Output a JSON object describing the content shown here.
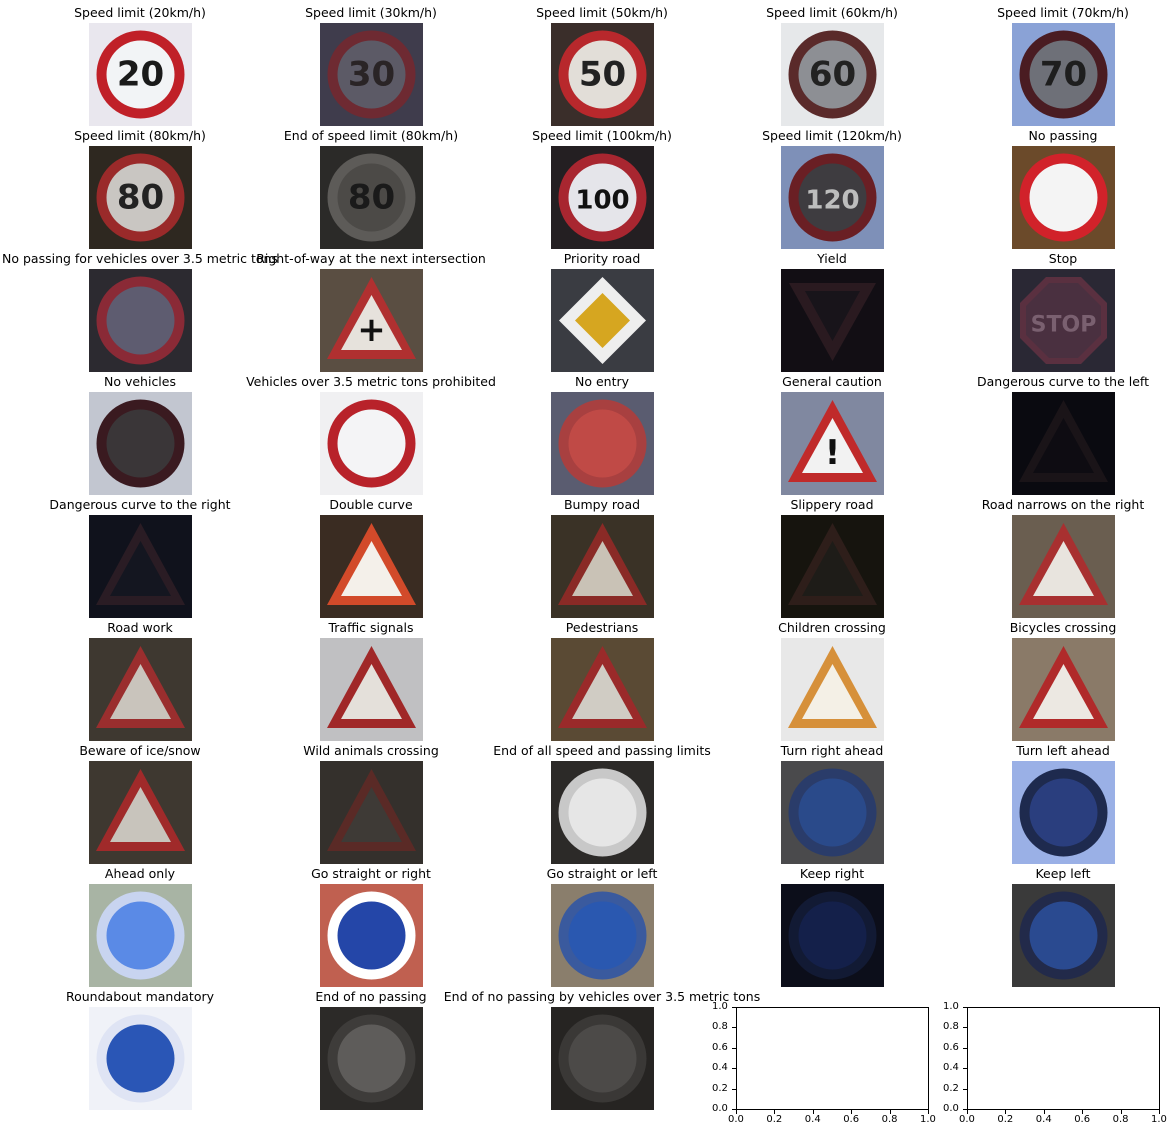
{
  "signs": [
    {
      "title": "Speed limit (20km/h)",
      "bg": "#e9e7ee",
      "kind": "round",
      "ring": "#c02028",
      "fill": "#f2f4f6",
      "text": "20",
      "textColor": "#1a1a1a",
      "icon": "speed-limit-20-sign-icon"
    },
    {
      "title": "Speed limit (30km/h)",
      "bg": "#3f3c4c",
      "kind": "round",
      "ring": "#6e2a32",
      "fill": "#5c5a66",
      "text": "30",
      "textColor": "#2a2426",
      "icon": "speed-limit-30-sign-icon"
    },
    {
      "title": "Speed limit (50km/h)",
      "bg": "#3a2e2a",
      "kind": "round",
      "ring": "#b8282c",
      "fill": "#e2ded8",
      "text": "50",
      "textColor": "#222",
      "icon": "speed-limit-50-sign-icon"
    },
    {
      "title": "Speed limit (60km/h)",
      "bg": "#e6e8ea",
      "kind": "round",
      "ring": "#5a2a2a",
      "fill": "#8d8f94",
      "text": "60",
      "textColor": "#222",
      "icon": "speed-limit-60-sign-icon"
    },
    {
      "title": "Speed limit (70km/h)",
      "bg": "#8aa2d6",
      "kind": "round",
      "ring": "#4a1c22",
      "fill": "#6e7078",
      "text": "70",
      "textColor": "#1e1e1e",
      "icon": "speed-limit-70-sign-icon"
    },
    {
      "title": "Speed limit (80km/h)",
      "bg": "#2e2820",
      "kind": "round",
      "ring": "#9a2a2a",
      "fill": "#c9c6c2",
      "text": "80",
      "textColor": "#222",
      "icon": "speed-limit-80-sign-icon"
    },
    {
      "title": "End of speed limit (80km/h)",
      "bg": "#2b2a28",
      "kind": "round",
      "ring": "#5d5b58",
      "fill": "#4c4a47",
      "text": "80",
      "textColor": "#1a1a1a",
      "icon": "end-speed-limit-80-sign-icon"
    },
    {
      "title": "Speed limit (100km/h)",
      "bg": "#241f22",
      "kind": "round",
      "ring": "#a82630",
      "fill": "#e5e5ea",
      "text": "100",
      "textColor": "#111",
      "icon": "speed-limit-100-sign-icon"
    },
    {
      "title": "Speed limit (120km/h)",
      "bg": "#7e90b8",
      "kind": "round",
      "ring": "#6a1f24",
      "fill": "#3e3c40",
      "text": "120",
      "textColor": "#bdbdbd",
      "icon": "speed-limit-120-sign-icon"
    },
    {
      "title": "No passing",
      "bg": "#6b4a2a",
      "kind": "round",
      "ring": "#d1222a",
      "fill": "#f4f4f4",
      "text": "",
      "textColor": "#222",
      "icon": "no-passing-sign-icon"
    },
    {
      "title": "No passing for vehicles over 3.5 metric tons",
      "bg": "#2c2a30",
      "kind": "round",
      "ring": "#8a2a36",
      "fill": "#5e5c70",
      "text": "",
      "textColor": "#222",
      "icon": "no-passing-trucks-sign-icon"
    },
    {
      "title": "Right-of-way at the next intersection",
      "bg": "#5a4e42",
      "kind": "triangle",
      "ring": "#b03030",
      "fill": "#e6e2dc",
      "text": "+",
      "textColor": "#111",
      "icon": "right-of-way-sign-icon"
    },
    {
      "title": "Priority road",
      "bg": "#3a3c42",
      "kind": "diamond",
      "ring": "#eeeeee",
      "fill": "#d6a620",
      "text": "",
      "textColor": "#111",
      "icon": "priority-road-sign-icon"
    },
    {
      "title": "Yield",
      "bg": "#120e14",
      "kind": "invtriangle",
      "ring": "#2a1a20",
      "fill": "#18141a",
      "text": "",
      "textColor": "#111",
      "icon": "yield-sign-icon"
    },
    {
      "title": "Stop",
      "bg": "#2a2834",
      "kind": "octagon",
      "ring": "#5a3040",
      "fill": "#4a3040",
      "text": "STOP",
      "textColor": "#7a6070",
      "icon": "stop-sign-icon"
    },
    {
      "title": "No vehicles",
      "bg": "#c2c6d0",
      "kind": "round",
      "ring": "#3a1a20",
      "fill": "#3a3638",
      "text": "",
      "textColor": "#222",
      "icon": "no-vehicles-sign-icon"
    },
    {
      "title": "Vehicles over 3.5 metric tons prohibited",
      "bg": "#f0f0f2",
      "kind": "round",
      "ring": "#b8222a",
      "fill": "#f4f4f6",
      "text": "",
      "textColor": "#111",
      "icon": "trucks-prohibited-sign-icon"
    },
    {
      "title": "No entry",
      "bg": "#5a5c70",
      "kind": "round",
      "ring": "#a84040",
      "fill": "#c04a46",
      "text": "",
      "textColor": "#eee",
      "icon": "no-entry-sign-icon"
    },
    {
      "title": "General caution",
      "bg": "#8088a0",
      "kind": "triangle",
      "ring": "#c02a2a",
      "fill": "#f2f2f2",
      "text": "!",
      "textColor": "#111",
      "icon": "general-caution-sign-icon"
    },
    {
      "title": "Dangerous curve to the left",
      "bg": "#0a0a10",
      "kind": "triangle",
      "ring": "#1a1418",
      "fill": "#0e0c12",
      "text": "",
      "textColor": "#222",
      "icon": "curve-left-sign-icon"
    },
    {
      "title": "Dangerous curve to the right",
      "bg": "#10121c",
      "kind": "triangle",
      "ring": "#2a1c24",
      "fill": "#141620",
      "text": "",
      "textColor": "#222",
      "icon": "curve-right-sign-icon"
    },
    {
      "title": "Double curve",
      "bg": "#3a2c22",
      "kind": "triangle",
      "ring": "#d24a2a",
      "fill": "#f4f0ea",
      "text": "",
      "textColor": "#111",
      "icon": "double-curve-sign-icon"
    },
    {
      "title": "Bumpy road",
      "bg": "#3a3226",
      "kind": "triangle",
      "ring": "#8a2a26",
      "fill": "#c9c2b6",
      "text": "",
      "textColor": "#111",
      "icon": "bumpy-road-sign-icon"
    },
    {
      "title": "Slippery road",
      "bg": "#16140e",
      "kind": "triangle",
      "ring": "#2e1e1a",
      "fill": "#1e1c18",
      "text": "",
      "textColor": "#222",
      "icon": "slippery-road-sign-icon"
    },
    {
      "title": "Road narrows on the right",
      "bg": "#6a5e50",
      "kind": "triangle",
      "ring": "#a83030",
      "fill": "#e8e4de",
      "text": "",
      "textColor": "#111",
      "icon": "road-narrows-sign-icon"
    },
    {
      "title": "Road work",
      "bg": "#3e3830",
      "kind": "triangle",
      "ring": "#9a2e2e",
      "fill": "#c9c4bc",
      "text": "",
      "textColor": "#111",
      "icon": "road-work-sign-icon"
    },
    {
      "title": "Traffic signals",
      "bg": "#c0c0c2",
      "kind": "triangle",
      "ring": "#a02828",
      "fill": "#e4e0da",
      "text": "",
      "textColor": "#111",
      "icon": "traffic-signals-sign-icon"
    },
    {
      "title": "Pedestrians",
      "bg": "#5a4a34",
      "kind": "triangle",
      "ring": "#9a2a2a",
      "fill": "#d0ccc4",
      "text": "",
      "textColor": "#111",
      "icon": "pedestrians-sign-icon"
    },
    {
      "title": "Children crossing",
      "bg": "#e8e8e8",
      "kind": "triangle",
      "ring": "#d6903a",
      "fill": "#f4f0e6",
      "text": "",
      "textColor": "#111",
      "icon": "children-crossing-sign-icon"
    },
    {
      "title": "Bicycles crossing",
      "bg": "#8a7a68",
      "kind": "triangle",
      "ring": "#b02a2a",
      "fill": "#ece8e2",
      "text": "",
      "textColor": "#111",
      "icon": "bicycles-crossing-sign-icon"
    },
    {
      "title": "Beware of ice/snow",
      "bg": "#3e3830",
      "kind": "triangle",
      "ring": "#a02a2a",
      "fill": "#c8c4bc",
      "text": "",
      "textColor": "#111",
      "icon": "ice-snow-sign-icon"
    },
    {
      "title": "Wild animals crossing",
      "bg": "#34302c",
      "kind": "triangle",
      "ring": "#5a2a26",
      "fill": "#3e3a36",
      "text": "",
      "textColor": "#222",
      "icon": "wild-animals-sign-icon"
    },
    {
      "title": "End of all speed and passing limits",
      "bg": "#2c2a28",
      "kind": "round",
      "ring": "#c8c8c8",
      "fill": "#e6e6e6",
      "text": "",
      "textColor": "#222",
      "icon": "end-all-limits-sign-icon"
    },
    {
      "title": "Turn right ahead",
      "bg": "#4a4a4c",
      "kind": "round",
      "ring": "#2a3c6a",
      "fill": "#2a4a8a",
      "text": "",
      "textColor": "#ddd",
      "icon": "turn-right-sign-icon"
    },
    {
      "title": "Turn left ahead",
      "bg": "#9ab0e6",
      "kind": "round",
      "ring": "#1e2a4e",
      "fill": "#2a3e7e",
      "text": "",
      "textColor": "#ddd",
      "icon": "turn-left-sign-icon"
    },
    {
      "title": "Ahead only",
      "bg": "#a8b4a4",
      "kind": "round",
      "ring": "#c8d4f0",
      "fill": "#5a8ae6",
      "text": "",
      "textColor": "#fff",
      "icon": "ahead-only-sign-icon"
    },
    {
      "title": "Go straight or right",
      "bg": "#c06050",
      "kind": "round",
      "ring": "#ffffff",
      "fill": "#2446a8",
      "text": "",
      "textColor": "#fff",
      "icon": "straight-or-right-sign-icon"
    },
    {
      "title": "Go straight or left",
      "bg": "#8a7e6c",
      "kind": "round",
      "ring": "#3a5a9e",
      "fill": "#2a58b0",
      "text": "",
      "textColor": "#fff",
      "icon": "straight-or-left-sign-icon"
    },
    {
      "title": "Keep right",
      "bg": "#0c0e1a",
      "kind": "round",
      "ring": "#121a34",
      "fill": "#14204a",
      "text": "",
      "textColor": "#2a3a6a",
      "icon": "keep-right-sign-icon"
    },
    {
      "title": "Keep left",
      "bg": "#3a3a3a",
      "kind": "round",
      "ring": "#222a4a",
      "fill": "#2a4a90",
      "text": "",
      "textColor": "#fff",
      "icon": "keep-left-sign-icon"
    },
    {
      "title": "Roundabout mandatory",
      "bg": "#f0f2f8",
      "kind": "round",
      "ring": "#dfe4f4",
      "fill": "#2a56b6",
      "text": "",
      "textColor": "#fff",
      "icon": "roundabout-sign-icon"
    },
    {
      "title": "End of no passing",
      "bg": "#2c2a28",
      "kind": "round",
      "ring": "#3e3c3a",
      "fill": "#5e5c5a",
      "text": "",
      "textColor": "#222",
      "icon": "end-no-passing-sign-icon"
    },
    {
      "title": "End of no passing by vehicles over 3.5 metric tons",
      "bg": "#262422",
      "kind": "round",
      "ring": "#3a3836",
      "fill": "#4c4a48",
      "text": "",
      "textColor": "#222",
      "icon": "end-no-passing-trucks-sign-icon"
    }
  ],
  "empty_axes": [
    {
      "yticks": [
        "1.0",
        "0.8",
        "0.6",
        "0.4",
        "0.2",
        "0.0"
      ],
      "xticks": [
        "0.0",
        "0.2",
        "0.4",
        "0.6",
        "0.8",
        "1.0"
      ]
    },
    {
      "yticks": [
        "1.0",
        "0.8",
        "0.6",
        "0.4",
        "0.2",
        "0.0"
      ],
      "xticks": [
        "0.0",
        "0.2",
        "0.4",
        "0.6",
        "0.8",
        "1.0"
      ]
    }
  ]
}
